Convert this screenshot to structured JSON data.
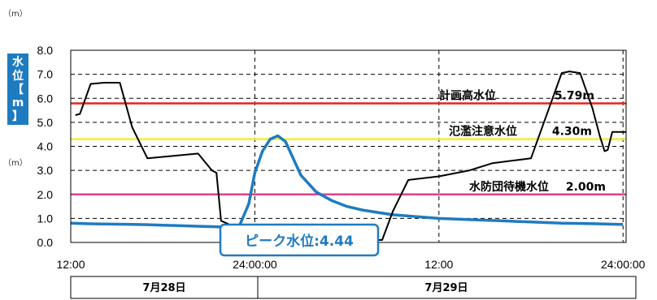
{
  "unit_label": "（m）",
  "y_axis_label": [
    "水",
    "位",
    "【",
    "m",
    "】"
  ],
  "date_labels": [
    "7月28日",
    "7月29日"
  ],
  "chart_data": {
    "type": "line",
    "title": "",
    "xlabel": "",
    "ylabel": "水位【m】",
    "x_ticks": [
      "12:00",
      "24:00:00",
      "12:00",
      "24:00:00"
    ],
    "x_tick_hours": [
      0,
      12,
      24,
      36
    ],
    "xlim_hours": [
      0,
      36.2
    ],
    "ylim": [
      0,
      8
    ],
    "y_ticks": [
      "0.0",
      "1.0",
      "2.0",
      "3.0",
      "4.0",
      "5.0",
      "6.0",
      "7.0",
      "8.0"
    ],
    "grid": true,
    "series": [
      {
        "color": "#1f7bc0",
        "x_hours": [
          0,
          1,
          2,
          3,
          4,
          5,
          6,
          7,
          8,
          9,
          10,
          11,
          11.6,
          12,
          12.5,
          13,
          13.5,
          14,
          14.5,
          15,
          16,
          17,
          18,
          19,
          20,
          21,
          22,
          23,
          24,
          26,
          28,
          30,
          32,
          34,
          36
        ],
        "values": [
          0.8,
          0.78,
          0.77,
          0.76,
          0.75,
          0.74,
          0.72,
          0.7,
          0.68,
          0.66,
          0.64,
          0.7,
          1.6,
          2.9,
          3.8,
          4.3,
          4.44,
          4.2,
          3.5,
          2.8,
          2.1,
          1.75,
          1.5,
          1.35,
          1.25,
          1.15,
          1.1,
          1.05,
          1.0,
          0.95,
          0.9,
          0.85,
          0.8,
          0.78,
          0.75
        ]
      },
      {
        "color": "#000000",
        "x_hours": [
          0.3,
          0.6,
          1.3,
          2.2,
          3.2,
          4.0,
          5.0,
          8.3,
          9.2,
          9.5,
          9.8,
          11.2,
          12,
          13,
          18.5,
          20.3,
          21,
          22,
          24,
          26,
          27.5,
          30,
          32,
          32.5,
          33.2,
          34,
          34.5,
          34.8,
          35,
          35.3,
          36.2
        ],
        "values": [
          5.3,
          5.35,
          6.6,
          6.65,
          6.65,
          4.8,
          3.5,
          3.7,
          3.0,
          2.9,
          0.9,
          0.5,
          0.3,
          0.1,
          0.1,
          0.1,
          1.3,
          2.6,
          2.75,
          3.0,
          3.3,
          3.5,
          7.05,
          7.12,
          7.05,
          5.6,
          4.4,
          3.8,
          3.85,
          4.6,
          4.6
        ]
      }
    ],
    "reference_lines": [
      {
        "label": "計画高水位",
        "value_label": "5.79m",
        "value": 5.79,
        "color": "#e8201f"
      },
      {
        "label": "氾濫注意水位",
        "value_label": "4.30m",
        "value": 4.3,
        "color": "#f3ef2a"
      },
      {
        "label": "水防団待機水位",
        "value_label": "2.00m",
        "value": 2.0,
        "color": "#e0408f"
      }
    ],
    "annotation": {
      "text": "ピーク水位:4.44",
      "x_hours": 13.5,
      "value": 4.44
    }
  }
}
